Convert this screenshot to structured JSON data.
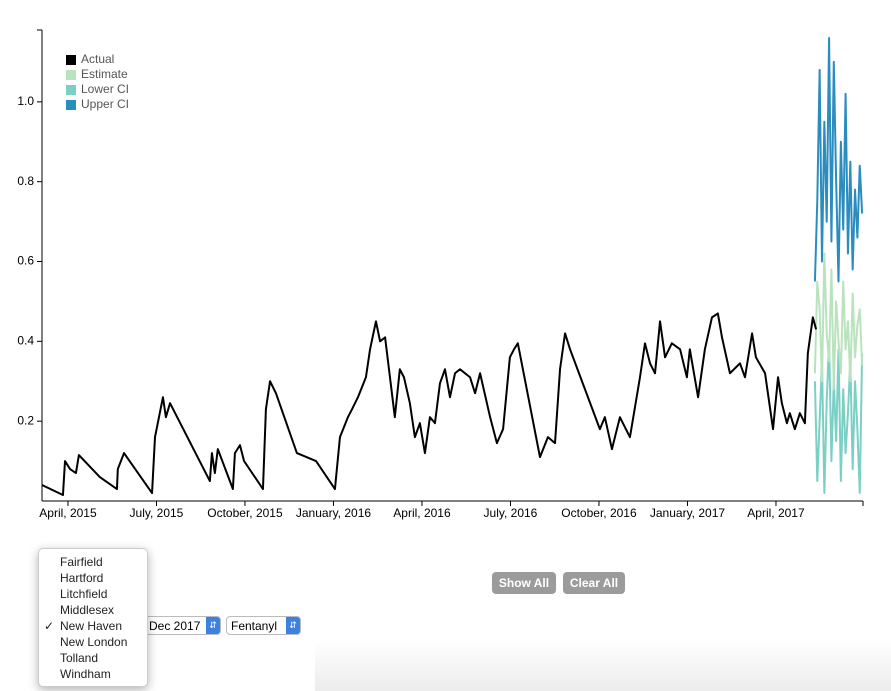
{
  "chart_data": {
    "type": "line",
    "legend": "top-left",
    "xlim": [
      -0.88,
      26.95
    ],
    "xticks": [
      {
        "value": 0,
        "label": "April, 2015"
      },
      {
        "value": 3,
        "label": "July, 2015"
      },
      {
        "value": 6,
        "label": "October, 2015"
      },
      {
        "value": 9,
        "label": "January, 2016"
      },
      {
        "value": 12,
        "label": "April, 2016"
      },
      {
        "value": 15,
        "label": "July, 2016"
      },
      {
        "value": 18,
        "label": "October, 2016"
      },
      {
        "value": 21,
        "label": "January, 2017"
      },
      {
        "value": 24,
        "label": "April, 2017"
      }
    ],
    "ylim": [
      0,
      1.18
    ],
    "yticks": [
      0.2,
      0.4,
      0.6,
      0.8,
      {
        "value": 1.0,
        "label": "1.0"
      }
    ],
    "series": [
      {
        "name": "Actual",
        "color": "#000000",
        "x": [
          -0.88,
          -0.17,
          -0.1,
          0.07,
          0.27,
          0.37,
          1.08,
          1.66,
          1.69,
          1.9,
          2.85,
          2.95,
          3.22,
          3.32,
          3.46,
          4.81,
          4.88,
          4.98,
          5.08,
          5.59,
          5.66,
          5.83,
          5.97,
          6.61,
          6.71,
          6.85,
          7.05,
          7.76,
          8.41,
          9.05,
          9.22,
          9.49,
          9.63,
          9.83,
          10.1,
          10.24,
          10.44,
          10.58,
          10.75,
          11.08,
          11.25,
          11.39,
          11.59,
          11.76,
          11.93,
          12.1,
          12.27,
          12.44,
          12.61,
          12.78,
          12.95,
          13.12,
          13.29,
          13.63,
          13.8,
          13.97,
          14.31,
          14.54,
          14.75,
          14.98,
          15.12,
          15.25,
          16.0,
          16.27,
          16.51,
          16.68,
          16.85,
          17.02,
          18.03,
          18.2,
          18.44,
          18.71,
          19.05,
          19.39,
          19.56,
          19.73,
          19.9,
          20.07,
          20.24,
          20.47,
          20.75,
          20.98,
          21.08,
          21.36,
          21.59,
          21.83,
          22.03,
          22.17,
          22.44,
          22.78,
          22.95,
          23.19,
          23.32,
          23.63,
          23.9,
          24.07,
          24.2,
          24.37,
          24.47,
          24.64,
          24.81,
          24.98,
          25.08,
          25.25,
          25.36
        ],
        "values": [
          0.04,
          0.015,
          0.1,
          0.08,
          0.07,
          0.115,
          0.06,
          0.03,
          0.08,
          0.12,
          0.02,
          0.16,
          0.26,
          0.21,
          0.245,
          0.05,
          0.12,
          0.07,
          0.13,
          0.03,
          0.12,
          0.14,
          0.1,
          0.03,
          0.23,
          0.3,
          0.27,
          0.12,
          0.1,
          0.03,
          0.16,
          0.21,
          0.23,
          0.26,
          0.31,
          0.38,
          0.45,
          0.4,
          0.41,
          0.21,
          0.33,
          0.31,
          0.245,
          0.16,
          0.195,
          0.12,
          0.21,
          0.195,
          0.295,
          0.33,
          0.26,
          0.32,
          0.33,
          0.31,
          0.27,
          0.32,
          0.21,
          0.145,
          0.18,
          0.36,
          0.38,
          0.395,
          0.11,
          0.16,
          0.145,
          0.33,
          0.42,
          0.38,
          0.18,
          0.21,
          0.13,
          0.21,
          0.16,
          0.31,
          0.395,
          0.345,
          0.32,
          0.45,
          0.36,
          0.395,
          0.38,
          0.31,
          0.38,
          0.26,
          0.38,
          0.46,
          0.47,
          0.41,
          0.32,
          0.345,
          0.31,
          0.42,
          0.36,
          0.32,
          0.18,
          0.31,
          0.245,
          0.195,
          0.22,
          0.18,
          0.22,
          0.195,
          0.37,
          0.46,
          0.43
        ]
      },
      {
        "name": "Estimate",
        "color": "#b9e3bd",
        "x": [
          25.32,
          25.4,
          25.48,
          25.56,
          25.64,
          25.72,
          25.8,
          25.88,
          25.96,
          26.04,
          26.12,
          26.2,
          26.28,
          26.36,
          26.44,
          26.52,
          26.6,
          26.68,
          26.76,
          26.84,
          26.92
        ],
        "values": [
          0.32,
          0.55,
          0.48,
          0.3,
          0.62,
          0.42,
          0.35,
          0.58,
          0.28,
          0.5,
          0.4,
          0.32,
          0.55,
          0.38,
          0.45,
          0.3,
          0.52,
          0.36,
          0.44,
          0.48,
          0.34
        ]
      },
      {
        "name": "Lower CI",
        "color": "#7ccfc5",
        "x": [
          25.32,
          25.4,
          25.48,
          25.56,
          25.64,
          25.72,
          25.8,
          25.88,
          25.96,
          26.04,
          26.12,
          26.2,
          26.28,
          26.36,
          26.44,
          26.52,
          26.6,
          26.68,
          26.76,
          26.84,
          26.92
        ],
        "values": [
          0.3,
          0.05,
          0.2,
          0.35,
          0.02,
          0.25,
          0.4,
          0.1,
          0.3,
          0.15,
          0.38,
          0.05,
          0.28,
          0.12,
          0.22,
          0.35,
          0.08,
          0.3,
          0.18,
          0.02,
          0.37
        ]
      },
      {
        "name": "Upper CI",
        "color": "#2b8cbe",
        "x": [
          25.32,
          25.4,
          25.48,
          25.56,
          25.64,
          25.72,
          25.8,
          25.88,
          25.96,
          26.04,
          26.12,
          26.2,
          26.28,
          26.36,
          26.44,
          26.52,
          26.6,
          26.68,
          26.76,
          26.84,
          26.92
        ],
        "values": [
          0.55,
          0.75,
          1.08,
          0.6,
          0.95,
          0.7,
          1.16,
          0.65,
          1.1,
          0.8,
          0.55,
          0.9,
          0.68,
          1.02,
          0.62,
          0.85,
          0.58,
          0.78,
          0.66,
          0.84,
          0.72
        ]
      }
    ]
  },
  "controls": {
    "buttons": [
      "Show All",
      "Clear All"
    ],
    "month_select": "Dec 2017",
    "drug_select": "Fentanyl",
    "county_menu": {
      "items": [
        "Fairfield",
        "Hartford",
        "Litchfield",
        "Middlesex",
        "New Haven",
        "New London",
        "Tolland",
        "Windham"
      ],
      "checked": "New Haven"
    }
  }
}
